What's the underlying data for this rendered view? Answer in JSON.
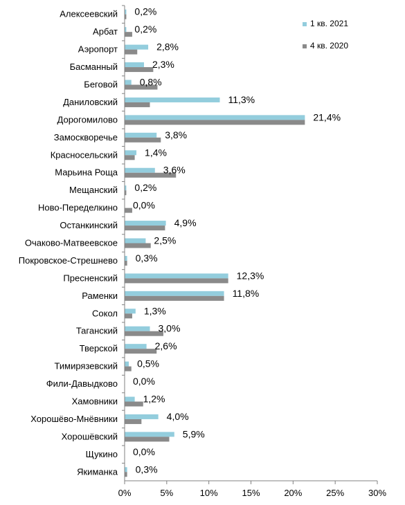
{
  "chart_data": {
    "type": "bar",
    "orientation": "horizontal",
    "categories": [
      "Алексеевский",
      "Арбат",
      "Аэропорт",
      "Басманный",
      "Беговой",
      "Даниловский",
      "Дорогомилово",
      "Замоскворечье",
      "Красносельский",
      "Марьина Роща",
      "Мещанский",
      "Ново-Переделкино",
      "Останкинский",
      "Очаково-Матвеевское",
      "Покровское-Стрешнево",
      "Пресненский",
      "Раменки",
      "Сокол",
      "Таганский",
      "Тверской",
      "Тимирязевский",
      "Фили-Давыдково",
      "Хамовники",
      "Хорошёво-Мнёвники",
      "Хорошёвский",
      "Щукино",
      "Якиманка"
    ],
    "series": [
      {
        "name": "1 кв. 2021",
        "color": "#93CDDD",
        "values": [
          0.2,
          0.2,
          2.8,
          2.3,
          0.8,
          11.3,
          21.4,
          3.8,
          1.4,
          3.6,
          0.2,
          0.0,
          4.9,
          2.5,
          0.3,
          12.3,
          11.8,
          1.3,
          3.0,
          2.6,
          0.5,
          0.0,
          1.2,
          4.0,
          5.9,
          0.0,
          0.3
        ]
      },
      {
        "name": "4 кв. 2020",
        "color": "#8A8A8A",
        "values": [
          0.2,
          0.9,
          1.5,
          3.4,
          3.9,
          3.0,
          21.4,
          4.3,
          1.2,
          6.1,
          0.2,
          0.9,
          4.8,
          3.1,
          0.3,
          12.3,
          11.8,
          0.9,
          4.6,
          3.8,
          0.8,
          0.0,
          2.2,
          2.0,
          5.3,
          0.0,
          0.3
        ]
      }
    ],
    "data_labels": [
      "0,2%",
      "0,2%",
      "2,8%",
      "2,3%",
      "0,8%",
      "11,3%",
      "21,4%",
      "3,8%",
      "1,4%",
      "3,6%",
      "0,2%",
      "0,0%",
      "4,9%",
      "2,5%",
      "0,3%",
      "12,3%",
      "11,8%",
      "1,3%",
      "3,0%",
      "2,6%",
      "0,5%",
      "0,0%",
      "1,2%",
      "4,0%",
      "5,9%",
      "0,0%",
      "0,3%"
    ],
    "x_ticks": [
      "0%",
      "5%",
      "10%",
      "15%",
      "20%",
      "25%",
      "30%"
    ],
    "xlim": [
      0,
      30
    ],
    "grid": false,
    "legend_position": "top-right",
    "title": "",
    "xlabel": "",
    "ylabel": ""
  }
}
